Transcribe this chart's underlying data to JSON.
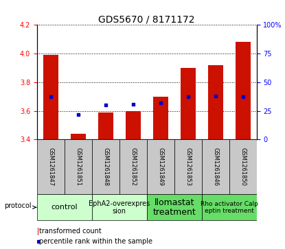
{
  "title": "GDS5670 / 8171172",
  "samples": [
    "GSM1261847",
    "GSM1261851",
    "GSM1261848",
    "GSM1261852",
    "GSM1261849",
    "GSM1261853",
    "GSM1261846",
    "GSM1261850"
  ],
  "transformed_counts": [
    3.99,
    3.44,
    3.59,
    3.6,
    3.7,
    3.9,
    3.92,
    4.08
  ],
  "percentile_ranks": [
    37,
    22,
    30,
    31,
    32,
    37,
    38,
    37
  ],
  "ylim_left": [
    3.4,
    4.2
  ],
  "ylim_right": [
    0,
    100
  ],
  "yticks_left": [
    3.4,
    3.6,
    3.8,
    4.0,
    4.2
  ],
  "yticks_right": [
    0,
    25,
    50,
    75,
    100
  ],
  "ytick_labels_right": [
    "0",
    "25",
    "50",
    "75",
    "100%"
  ],
  "bar_color": "#cc1100",
  "dot_color": "#0000cc",
  "sample_box_color": "#c8c8c8",
  "protocols": [
    {
      "label": "control",
      "span": [
        0,
        1
      ],
      "color": "#ccffcc",
      "fontsize": 8
    },
    {
      "label": "EphA2-overexpres\nsion",
      "span": [
        2,
        3
      ],
      "color": "#ccffcc",
      "fontsize": 7
    },
    {
      "label": "llomastat\ntreatment",
      "span": [
        4,
        5
      ],
      "color": "#66dd66",
      "fontsize": 9
    },
    {
      "label": "Rho activator Calp\neptin treatment",
      "span": [
        6,
        7
      ],
      "color": "#66dd66",
      "fontsize": 6.5
    }
  ],
  "protocol_label": "protocol",
  "legend_bar_label": "transformed count",
  "legend_dot_label": "percentile rank within the sample",
  "bar_width": 0.55,
  "title_fontsize": 10,
  "tick_fontsize": 7,
  "sample_fontsize": 6,
  "legend_fontsize": 7
}
